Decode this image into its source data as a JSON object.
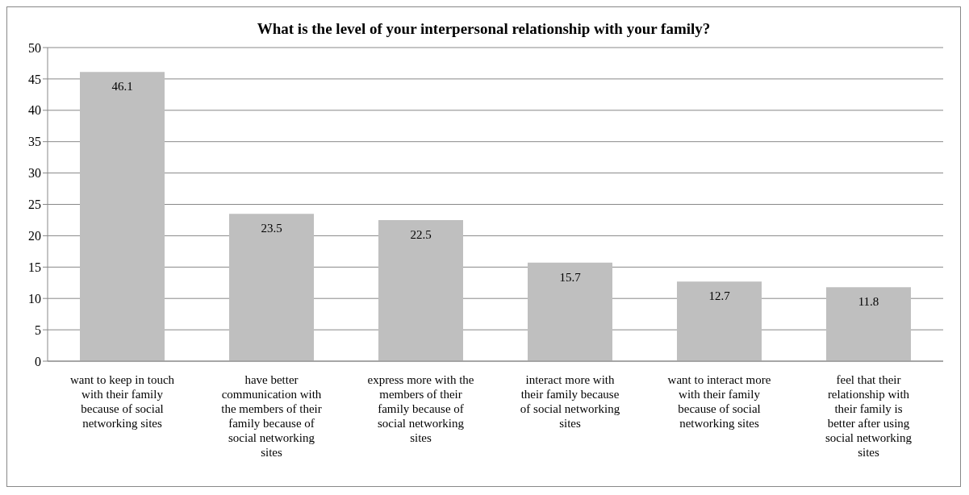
{
  "chart_data": {
    "type": "bar",
    "title": "What is the level of your interpersonal relationship with your family?",
    "categories": [
      "want to keep in touch with their family because of social networking sites",
      "have better communication with the members of their family because of social networking sites",
      "express more with the members of their family because of social networking sites",
      "interact more with their family because of social networking sites",
      "want to interact more with their family because of social networking sites",
      "feel that their relationship with their family is better after using social networking sites"
    ],
    "values": [
      46.1,
      23.5,
      22.5,
      15.7,
      12.7,
      11.8
    ],
    "color": "#bfbfbf",
    "ylim": [
      0,
      50
    ],
    "yticks": [
      0,
      5,
      10,
      15,
      20,
      25,
      30,
      35,
      40,
      45,
      50
    ],
    "grid": "y",
    "data_labels": true
  }
}
